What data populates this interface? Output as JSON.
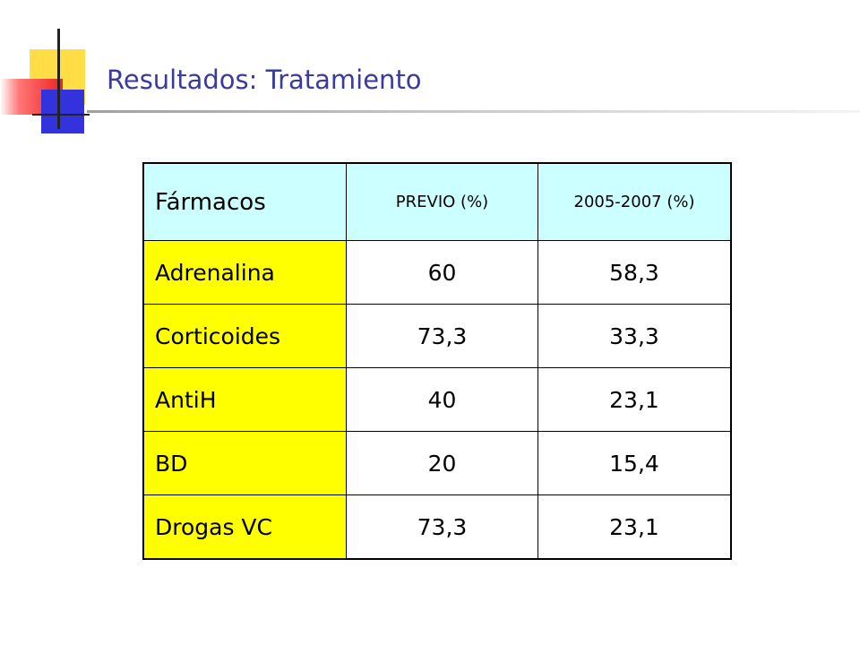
{
  "slide": {
    "title": "Resultados: Tratamiento"
  },
  "table": {
    "headers": [
      "Fármacos",
      "PREVIO (%)",
      "2005-2007 (%)"
    ],
    "rows": [
      {
        "drug": "Adrenalina",
        "previo": "60",
        "period": "58,3"
      },
      {
        "drug": "Corticoides",
        "previo": "73,3",
        "period": "33,3"
      },
      {
        "drug": "AntiH",
        "previo": "40",
        "period": "23,1"
      },
      {
        "drug": "BD",
        "previo": "20",
        "period": "15,4"
      },
      {
        "drug": "Drogas VC",
        "previo": "73,3",
        "period": "23,1"
      }
    ]
  },
  "colors": {
    "title": "#3a3aa0",
    "header_bg": "#ccffff",
    "drug_col_bg": "#ffff00",
    "logo_yellow": "#ffdd44",
    "logo_red": "#ee2222",
    "logo_blue": "#3333dd"
  }
}
